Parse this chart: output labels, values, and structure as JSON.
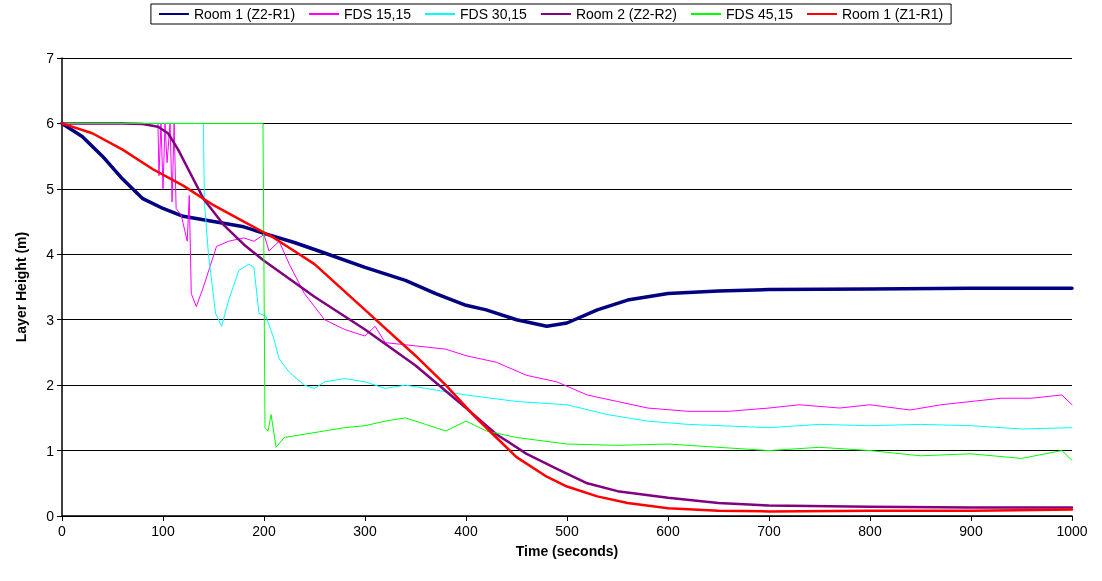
{
  "chart_data": {
    "type": "line",
    "xlabel": "Time (seconds)",
    "ylabel": "Layer Height (m)",
    "xlim": [
      0,
      1000
    ],
    "xticks": [
      0,
      100,
      200,
      300,
      400,
      500,
      600,
      700,
      800,
      900,
      1000
    ],
    "ylim": [
      0,
      7
    ],
    "yticks": [
      0,
      1,
      2,
      3,
      4,
      5,
      6,
      7
    ],
    "grid": "y",
    "legend": "top",
    "marker": "none",
    "line_style": "solid",
    "series": [
      {
        "name": "Room 1 (Z2-R1)",
        "color": "#000080",
        "x": [
          0,
          20,
          40,
          60,
          80,
          100,
          120,
          150,
          180,
          200,
          230,
          260,
          300,
          340,
          370,
          400,
          420,
          450,
          480,
          500,
          530,
          560,
          600,
          650,
          700,
          800,
          900,
          1000
        ],
        "values": [
          6,
          5.8,
          5.5,
          5.15,
          4.85,
          4.7,
          4.58,
          4.5,
          4.42,
          4.32,
          4.18,
          4.02,
          3.8,
          3.6,
          3.4,
          3.22,
          3.15,
          3.0,
          2.9,
          2.95,
          3.15,
          3.3,
          3.4,
          3.44,
          3.46,
          3.47,
          3.48,
          3.48
        ]
      },
      {
        "name": "FDS 15,15",
        "color": "#ff00ff",
        "x": [
          0,
          95,
          96,
          98,
          100,
          102,
          104,
          107,
          109,
          111,
          113,
          118,
          124,
          126,
          128,
          133,
          140,
          153,
          165,
          180,
          190,
          200,
          205,
          215,
          225,
          240,
          260,
          280,
          300,
          310,
          320,
          350,
          380,
          400,
          430,
          460,
          490,
          520,
          550,
          580,
          620,
          660,
          700,
          730,
          770,
          800,
          840,
          870,
          900,
          930,
          960,
          990,
          1000
        ],
        "values": [
          6,
          6,
          5.2,
          6,
          5.0,
          6,
          5.4,
          6,
          4.8,
          6,
          4.7,
          4.6,
          4.2,
          4.9,
          3.4,
          3.2,
          3.5,
          4.12,
          4.2,
          4.25,
          4.2,
          4.3,
          4.05,
          4.2,
          3.85,
          3.4,
          3.0,
          2.85,
          2.75,
          2.9,
          2.65,
          2.6,
          2.55,
          2.45,
          2.35,
          2.15,
          2.05,
          1.85,
          1.75,
          1.65,
          1.6,
          1.6,
          1.65,
          1.7,
          1.65,
          1.7,
          1.62,
          1.7,
          1.75,
          1.8,
          1.8,
          1.85,
          1.7
        ]
      },
      {
        "name": "FDS 30,15",
        "color": "#00ffff",
        "x": [
          0,
          140,
          141,
          145,
          152,
          158,
          165,
          175,
          185,
          190,
          195,
          202,
          210,
          215,
          225,
          240,
          250,
          260,
          280,
          300,
          320,
          340,
          360,
          400,
          450,
          500,
          540,
          580,
          620,
          700,
          750,
          800,
          850,
          900,
          950,
          1000
        ],
        "values": [
          6,
          6,
          4.8,
          4.0,
          3.1,
          2.9,
          3.3,
          3.75,
          3.85,
          3.8,
          3.1,
          3.05,
          2.7,
          2.4,
          2.2,
          2.0,
          1.95,
          2.05,
          2.1,
          2.05,
          1.95,
          2.0,
          1.95,
          1.85,
          1.75,
          1.7,
          1.55,
          1.45,
          1.4,
          1.35,
          1.4,
          1.38,
          1.4,
          1.38,
          1.33,
          1.35
        ]
      },
      {
        "name": "Room 2 (Z2-R2)",
        "color": "#800080",
        "x": [
          0,
          60,
          80,
          95,
          105,
          115,
          125,
          140,
          160,
          180,
          200,
          250,
          300,
          350,
          400,
          430,
          460,
          490,
          520,
          550,
          600,
          650,
          700,
          800,
          900,
          1000
        ],
        "values": [
          6,
          6,
          5.99,
          5.95,
          5.85,
          5.6,
          5.3,
          4.85,
          4.45,
          4.15,
          3.9,
          3.35,
          2.85,
          2.3,
          1.65,
          1.25,
          0.95,
          0.72,
          0.5,
          0.38,
          0.28,
          0.2,
          0.16,
          0.14,
          0.13,
          0.13
        ]
      },
      {
        "name": "FDS 45,15",
        "color": "#00ff00",
        "x": [
          0,
          199,
          201,
          204,
          207,
          212,
          220,
          240,
          260,
          280,
          300,
          320,
          340,
          360,
          380,
          400,
          420,
          450,
          500,
          550,
          600,
          650,
          700,
          750,
          800,
          850,
          900,
          950,
          990,
          1000
        ],
        "values": [
          6,
          6,
          1.35,
          1.3,
          1.55,
          1.05,
          1.2,
          1.25,
          1.3,
          1.35,
          1.38,
          1.45,
          1.5,
          1.4,
          1.3,
          1.45,
          1.3,
          1.2,
          1.1,
          1.08,
          1.1,
          1.05,
          1.0,
          1.05,
          1.0,
          0.92,
          0.95,
          0.88,
          1.0,
          0.85
        ]
      },
      {
        "name": "Room 1 (Z1-R1)",
        "color": "#ff0000",
        "x": [
          0,
          30,
          60,
          90,
          120,
          150,
          180,
          210,
          250,
          300,
          350,
          380,
          410,
          430,
          450,
          480,
          500,
          530,
          560,
          600,
          650,
          700,
          800,
          900,
          1000
        ],
        "values": [
          6,
          5.85,
          5.6,
          5.3,
          5.05,
          4.75,
          4.5,
          4.25,
          3.85,
          3.15,
          2.45,
          2.0,
          1.5,
          1.2,
          0.9,
          0.6,
          0.45,
          0.3,
          0.2,
          0.12,
          0.08,
          0.07,
          0.08,
          0.08,
          0.1
        ]
      }
    ]
  }
}
